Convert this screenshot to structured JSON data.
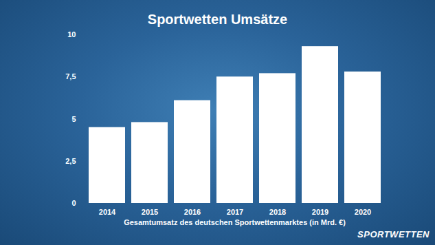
{
  "chart_data": {
    "type": "bar",
    "title": "Sportwetten Umsätze",
    "x_label": "Gesamtumsatz des deutschen Sportwettenmarktes (in Mrd. €)",
    "categories": [
      "2014",
      "2015",
      "2016",
      "2017",
      "2018",
      "2019",
      "2020"
    ],
    "values": [
      4.5,
      4.8,
      6.1,
      7.5,
      7.7,
      9.3,
      7.8
    ],
    "color": "#ffffff",
    "ylim": [
      0,
      10
    ],
    "yticks": [
      0,
      {
        "value": 2.5,
        "label": "2,5"
      },
      5,
      {
        "value": 7.5,
        "label": "7,5"
      },
      10
    ],
    "grid": false,
    "logo": "SPORTWETTEN"
  }
}
